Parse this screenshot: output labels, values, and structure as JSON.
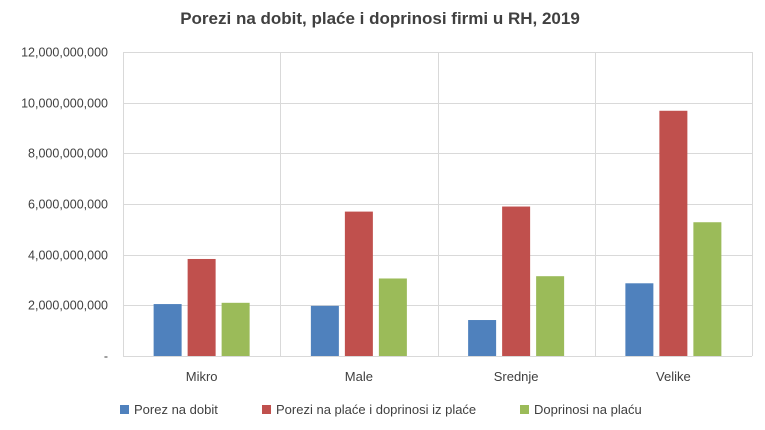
{
  "chart_data": {
    "type": "bar",
    "title": "Porezi na dobit, plaće i doprinosi firmi u RH, 2019",
    "xlabel": "",
    "ylabel": "",
    "categories": [
      "Mikro",
      "Male",
      "Srednje",
      "Velike"
    ],
    "series": [
      {
        "name": "Porez na dobit",
        "color": "#4f81bd",
        "values": [
          2050000000,
          1980000000,
          1420000000,
          2870000000
        ]
      },
      {
        "name": "Porezi na plaće i doprinosi iz plaće",
        "color": "#c0504d",
        "values": [
          3830000000,
          5700000000,
          5900000000,
          9680000000
        ]
      },
      {
        "name": "Doprinosi na plaću",
        "color": "#9bbb59",
        "values": [
          2100000000,
          3060000000,
          3150000000,
          5280000000
        ]
      }
    ],
    "ylim": [
      0,
      12000000000
    ],
    "y_ticks": [
      {
        "value": 0,
        "label": "-"
      },
      {
        "value": 2000000000,
        "label": "2,000,000,000"
      },
      {
        "value": 4000000000,
        "label": "4,000,000,000"
      },
      {
        "value": 6000000000,
        "label": "6,000,000,000"
      },
      {
        "value": 8000000000,
        "label": "8,000,000,000"
      },
      {
        "value": 10000000000,
        "label": "10,000,000,000"
      },
      {
        "value": 12000000000,
        "label": "12,000,000,000"
      }
    ],
    "grid": true,
    "legend_position": "bottom"
  }
}
